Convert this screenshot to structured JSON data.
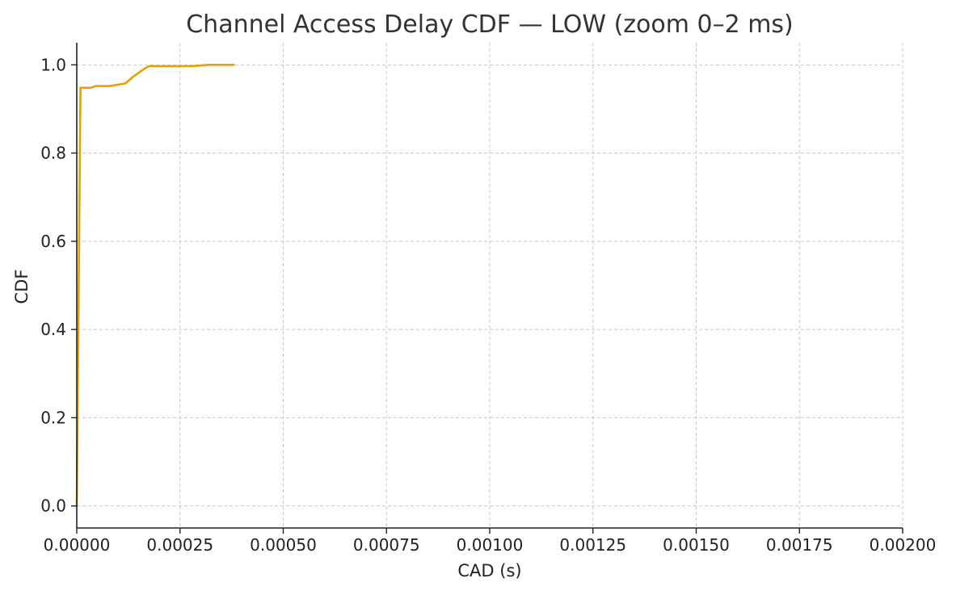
{
  "chart_data": {
    "type": "line",
    "title": "Channel Access Delay CDF — LOW (zoom 0–2 ms)",
    "xlabel": "CAD (s)",
    "ylabel": "CDF",
    "xlim": [
      0,
      0.002
    ],
    "ylim": [
      -0.05,
      1.05
    ],
    "grid": true,
    "x_ticks": [
      0,
      0.00025,
      0.0005,
      0.00075,
      0.001,
      0.00125,
      0.0015,
      0.00175,
      0.002
    ],
    "x_tick_labels": [
      "0.00000",
      "0.00025",
      "0.00050",
      "0.00075",
      "0.00100",
      "0.00125",
      "0.00150",
      "0.00175",
      "0.00200"
    ],
    "y_ticks": [
      0,
      0.2,
      0.4,
      0.6,
      0.8,
      1.0
    ],
    "y_tick_labels": [
      "0.0",
      "0.2",
      "0.4",
      "0.6",
      "0.8",
      "1.0"
    ],
    "series": [
      {
        "color": "#E6A000",
        "x": [
          0,
          9e-06,
          3.5e-05,
          4.5e-05,
          8e-05,
          0.0001,
          0.000118,
          0.000135,
          0.00015,
          0.000165,
          0.000175,
          0.00018,
          0.00028,
          0.00032,
          0.00038
        ],
        "y": [
          0.0,
          0.948,
          0.948,
          0.952,
          0.952,
          0.955,
          0.958,
          0.972,
          0.982,
          0.992,
          0.997,
          0.997,
          0.997,
          1.0,
          1.0
        ]
      }
    ]
  }
}
